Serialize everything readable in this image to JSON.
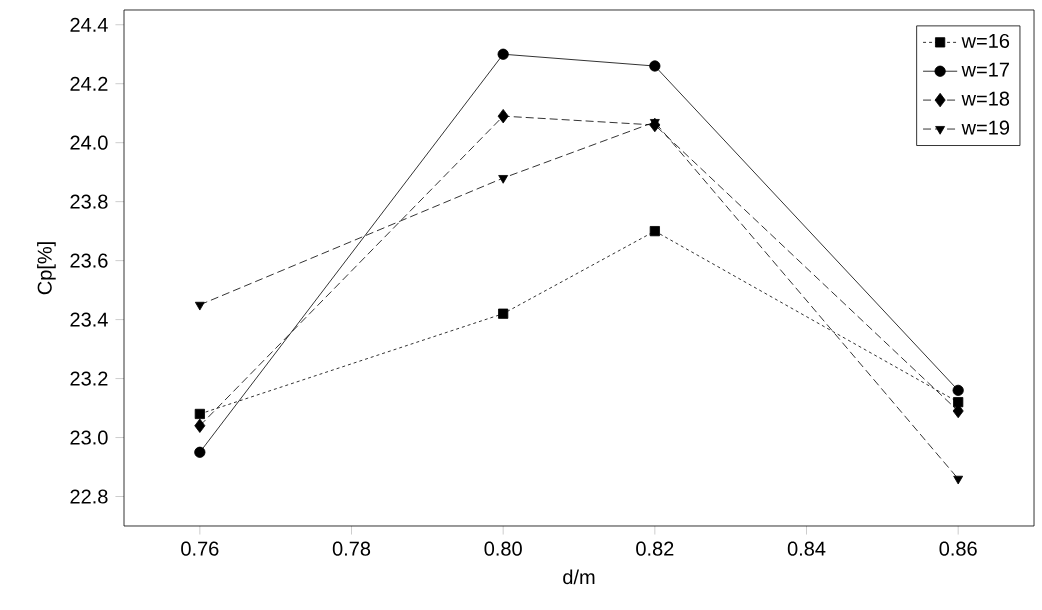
{
  "chart_data": {
    "type": "line",
    "xlabel": "d/m",
    "ylabel": "Cp[%]",
    "x": [
      0.76,
      0.8,
      0.82,
      0.86
    ],
    "series": [
      {
        "name": "w=16",
        "color": "#000000",
        "marker": "square",
        "line_style": "dotted",
        "values": [
          23.08,
          23.42,
          23.7,
          23.12
        ]
      },
      {
        "name": "w=17",
        "color": "#000000",
        "marker": "circle",
        "line_style": "solid",
        "values": [
          22.95,
          24.3,
          24.26,
          23.16
        ]
      },
      {
        "name": "w=18",
        "color": "#000000",
        "marker": "diamond",
        "line_style": "dashed",
        "values": [
          23.04,
          24.09,
          24.06,
          23.09
        ]
      },
      {
        "name": "w=19",
        "color": "#000000",
        "marker": "triangle",
        "line_style": "dashed",
        "values": [
          23.45,
          23.88,
          24.07,
          22.86
        ]
      }
    ],
    "xlim": [
      0.75,
      0.87
    ],
    "xticks": [
      {
        "value": 0.76,
        "label": "0.76"
      },
      {
        "value": 0.78,
        "label": "0.78"
      },
      {
        "value": 0.8,
        "label": "0.80"
      },
      {
        "value": 0.82,
        "label": "0.82"
      },
      {
        "value": 0.84,
        "label": "0.84"
      },
      {
        "value": 0.86,
        "label": "0.86"
      }
    ],
    "ylim": [
      22.7,
      24.45
    ],
    "yticks": [
      {
        "value": 22.8,
        "label": "22.8"
      },
      {
        "value": 23,
        "label": "23.0"
      },
      {
        "value": 23.2,
        "label": "23.2"
      },
      {
        "value": 23.4,
        "label": "23.4"
      },
      {
        "value": 23.6,
        "label": "23.6"
      },
      {
        "value": 23.8,
        "label": "23.8"
      },
      {
        "value": 24,
        "label": "24.0"
      },
      {
        "value": 24.2,
        "label": "24.2"
      },
      {
        "value": 24.4,
        "label": "24.4"
      }
    ],
    "grid": false,
    "legend": "top right"
  }
}
